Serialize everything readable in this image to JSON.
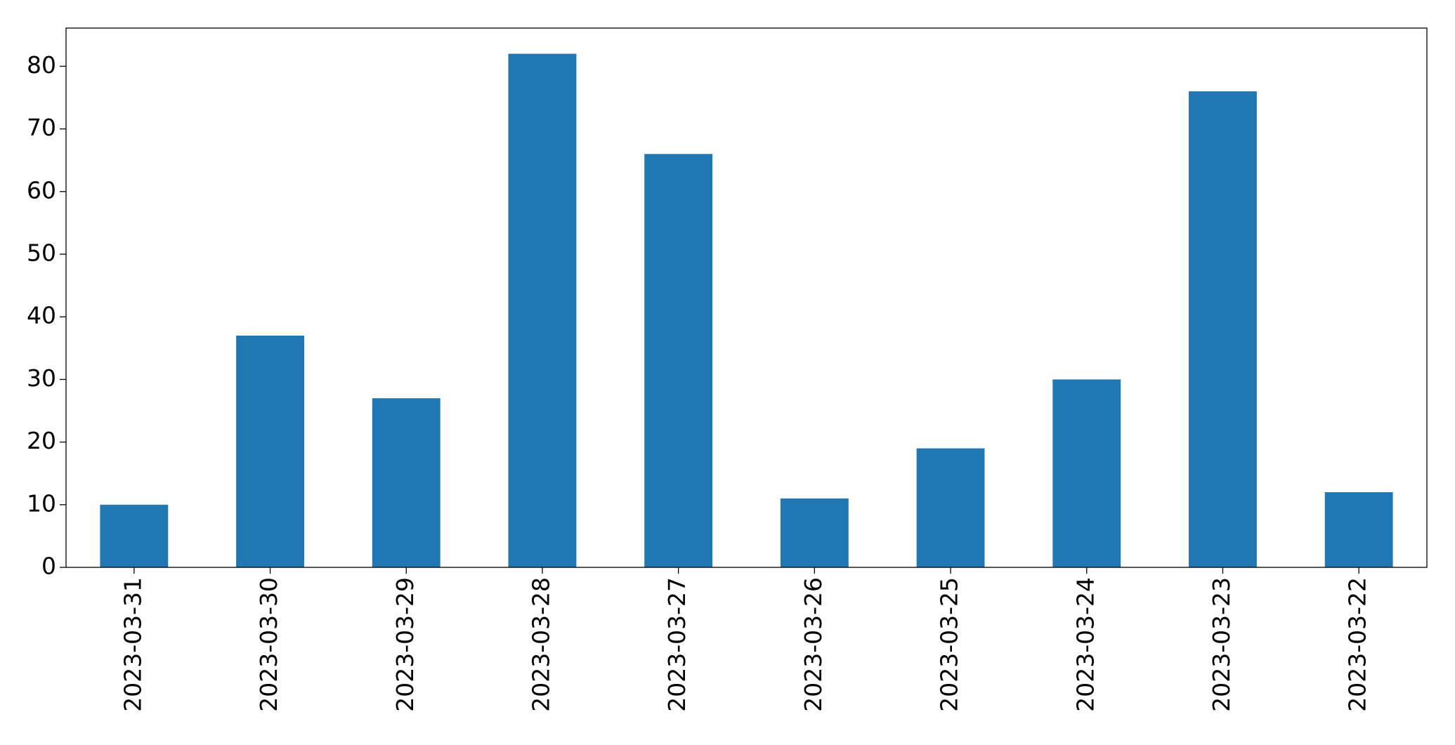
{
  "chart_data": {
    "type": "bar",
    "categories": [
      "2023-03-31",
      "2023-03-30",
      "2023-03-29",
      "2023-03-28",
      "2023-03-27",
      "2023-03-26",
      "2023-03-25",
      "2023-03-24",
      "2023-03-23",
      "2023-03-22"
    ],
    "values": [
      10,
      37,
      27,
      82,
      66,
      11,
      19,
      30,
      76,
      12
    ],
    "color": "#1f77b4",
    "ylim": [
      0,
      86.1
    ],
    "yticks": [
      0,
      10,
      20,
      30,
      40,
      50,
      60,
      70,
      80
    ],
    "grid": false
  }
}
